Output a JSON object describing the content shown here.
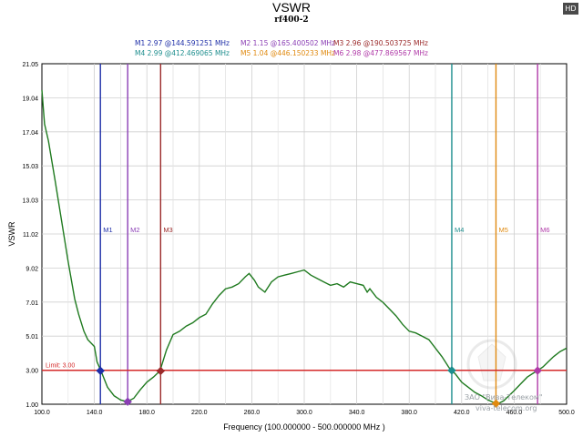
{
  "hd_badge": "HD",
  "watermark": {
    "line1": "ЗАО \"Вива-Телеком\"",
    "line2": "viva-telecom.org"
  },
  "marker_legend": [
    {
      "name": "M1",
      "text": "2.97 @144.591251 MHz",
      "color": "#1f2fa8"
    },
    {
      "name": "M2",
      "text": "1.15 @165.400502 MHz",
      "color": "#8b3fb5"
    },
    {
      "name": "M3",
      "text": "2.96 @190.503725 MHz",
      "color": "#9b2a2a"
    },
    {
      "name": "M4",
      "text": "2.99 @412.469065 MHz",
      "color": "#1e8e8e"
    },
    {
      "name": "M5",
      "text": "1.04 @446.150233 MHz",
      "color": "#e08a10"
    },
    {
      "name": "M6",
      "text": "2.98 @477.869567 MHz",
      "color": "#b03aa8"
    }
  ],
  "chart_data": {
    "type": "line",
    "title": "VSWR",
    "subtitle": "rf400-2",
    "xlabel": "Frequency (100.000000 - 500.000000 MHz )",
    "ylabel": "VSWR",
    "xlim": [
      100,
      500
    ],
    "ylim": [
      1.0,
      21.05
    ],
    "x_ticks": [
      "100.0",
      "140.0",
      "180.0",
      "220.0",
      "260.0",
      "300.0",
      "340.0",
      "380.0",
      "420.0",
      "460.0",
      "500.0"
    ],
    "y_ticks": [
      "21.05",
      "19.04",
      "17.04",
      "15.03",
      "13.03",
      "11.02",
      "9.02",
      "7.01",
      "5.01",
      "3.00",
      "1.00"
    ],
    "grid": true,
    "limit": {
      "label": "Limit: 3.00",
      "value": 3.0,
      "color": "#d42a2a"
    },
    "line_color": "#1f7a1f",
    "series": [
      {
        "x": [
          100,
          102,
          105,
          110,
          115,
          120,
          125,
          128,
          132,
          135,
          140,
          142,
          145,
          150,
          155,
          160,
          165,
          170,
          175,
          180,
          185,
          190,
          195,
          200,
          205,
          210,
          215,
          220,
          225,
          230,
          235,
          240,
          245,
          250,
          255,
          258,
          262,
          265,
          270,
          275,
          280,
          285,
          290,
          295,
          300,
          305,
          310,
          315,
          320,
          325,
          330,
          335,
          340,
          345,
          348,
          350,
          355,
          360,
          365,
          370,
          375,
          380,
          385,
          390,
          395,
          400,
          405,
          410,
          412,
          415,
          420,
          425,
          430,
          435,
          440,
          445,
          448,
          452,
          456,
          460,
          465,
          470,
          475,
          478,
          482,
          486,
          490,
          495,
          500
        ],
        "values": [
          19.5,
          17.5,
          16.5,
          14.2,
          11.8,
          9.4,
          7.2,
          6.3,
          5.3,
          4.8,
          4.4,
          3.5,
          2.97,
          2.0,
          1.5,
          1.25,
          1.15,
          1.35,
          1.85,
          2.3,
          2.6,
          2.96,
          4.2,
          5.1,
          5.3,
          5.6,
          5.8,
          6.1,
          6.3,
          6.9,
          7.4,
          7.8,
          7.9,
          8.1,
          8.5,
          8.7,
          8.3,
          7.9,
          7.6,
          8.2,
          8.5,
          8.6,
          8.7,
          8.8,
          8.9,
          8.6,
          8.4,
          8.2,
          8.0,
          8.1,
          7.9,
          8.2,
          8.1,
          8.0,
          7.6,
          7.8,
          7.3,
          7.0,
          6.6,
          6.2,
          5.7,
          5.3,
          5.2,
          5.0,
          4.8,
          4.3,
          3.8,
          3.2,
          2.99,
          2.8,
          2.3,
          2.0,
          1.7,
          1.5,
          1.25,
          1.08,
          1.04,
          1.2,
          1.5,
          1.8,
          2.2,
          2.6,
          2.85,
          2.98,
          3.2,
          3.5,
          3.8,
          4.1,
          4.3
        ]
      }
    ],
    "markers": [
      {
        "name": "M1",
        "x": 144.591251,
        "y": 2.97,
        "color": "#1f2fa8"
      },
      {
        "name": "M2",
        "x": 165.400502,
        "y": 1.15,
        "color": "#8b3fb5"
      },
      {
        "name": "M3",
        "x": 190.503725,
        "y": 2.96,
        "color": "#9b2a2a"
      },
      {
        "name": "M4",
        "x": 412.469065,
        "y": 2.99,
        "color": "#1e8e8e"
      },
      {
        "name": "M5",
        "x": 446.150233,
        "y": 1.04,
        "color": "#e08a10"
      },
      {
        "name": "M6",
        "x": 477.869567,
        "y": 2.98,
        "color": "#b03aa8"
      }
    ]
  }
}
